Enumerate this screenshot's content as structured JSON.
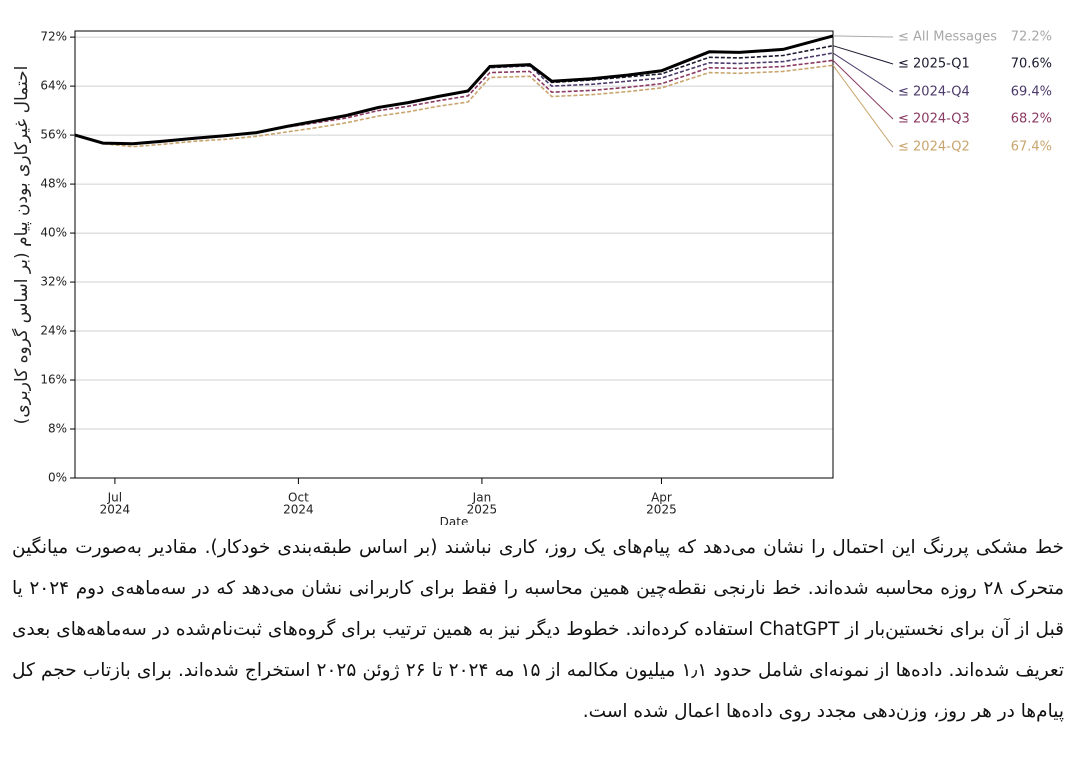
{
  "chart_data": {
    "type": "line",
    "y_label": "احتمال غیرکاری بودن پیام (بر اساس گروه کاربری)",
    "x_label": "Date",
    "x": [
      "2024-06-11",
      "2024-06-25",
      "2024-07-10",
      "2024-07-25",
      "2024-08-10",
      "2024-08-25",
      "2024-09-10",
      "2024-09-25",
      "2024-10-10",
      "2024-10-25",
      "2024-11-10",
      "2024-11-25",
      "2024-12-10",
      "2024-12-25",
      "2025-01-05",
      "2025-01-25",
      "2025-02-05",
      "2025-02-25",
      "2025-03-15",
      "2025-04-01",
      "2025-04-25",
      "2025-05-10",
      "2025-06-01",
      "2025-06-26"
    ],
    "series": [
      {
        "name": "≤ 2024-Q2",
        "color": "#c9a56e",
        "dashed": true,
        "end_label": "67.4%",
        "values": [
          56,
          54.6,
          54.1,
          54.5,
          55.0,
          55.3,
          55.8,
          56.5,
          57.2,
          58.0,
          59.1,
          59.8,
          60.7,
          61.4,
          65.4,
          65.6,
          62.3,
          62.6,
          63.1,
          63.7,
          66.2,
          66.1,
          66.4,
          67.4
        ]
      },
      {
        "name": "≤ 2024-Q3",
        "color": "#8b3a62",
        "dashed": true,
        "end_label": "68.2%",
        "values": [
          56,
          54.7,
          54.6,
          55.0,
          55.5,
          55.9,
          56.4,
          57.3,
          58.0,
          58.8,
          60.0,
          60.7,
          61.6,
          62.4,
          66.2,
          66.4,
          63.0,
          63.3,
          63.8,
          64.4,
          67.0,
          66.9,
          67.2,
          68.2
        ]
      },
      {
        "name": "≤ 2024-Q4",
        "color": "#4b3a6b",
        "dashed": true,
        "end_label": "69.4%",
        "values": [
          56,
          54.7,
          54.6,
          55.0,
          55.5,
          55.9,
          56.4,
          57.4,
          58.3,
          59.2,
          60.5,
          61.3,
          62.3,
          63.2,
          67.0,
          67.3,
          64.0,
          64.3,
          64.8,
          65.3,
          67.8,
          67.7,
          68.0,
          69.4
        ]
      },
      {
        "name": "≤ 2025-Q1",
        "color": "#1a1a2e",
        "dashed": true,
        "end_label": "70.6%",
        "values": [
          56,
          54.7,
          54.6,
          55.0,
          55.5,
          55.9,
          56.4,
          57.4,
          58.3,
          59.2,
          60.5,
          61.3,
          62.3,
          63.2,
          67.2,
          67.5,
          64.6,
          65.0,
          65.5,
          66.0,
          68.7,
          68.6,
          69.0,
          70.6
        ]
      },
      {
        "name": "≤ All Messages",
        "color": "#000000",
        "dashed": false,
        "label_color": "#a8a8a8",
        "end_label": "72.2%",
        "values": [
          56,
          54.7,
          54.6,
          55.0,
          55.5,
          55.9,
          56.4,
          57.4,
          58.3,
          59.2,
          60.5,
          61.3,
          62.3,
          63.2,
          67.2,
          67.5,
          64.8,
          65.2,
          65.8,
          66.5,
          69.6,
          69.5,
          70.0,
          72.2
        ]
      }
    ],
    "xlim": [
      "2024-06-11",
      "2025-06-26"
    ],
    "xticks": [
      {
        "value": "2024-07-01",
        "label": "Jul",
        "year": "2024"
      },
      {
        "value": "2024-10-01",
        "label": "Oct",
        "year": "2024"
      },
      {
        "value": "2025-01-01",
        "label": "Jan",
        "year": "2025"
      },
      {
        "value": "2025-04-01",
        "label": "Apr",
        "year": "2025"
      }
    ],
    "ylim": [
      0,
      73
    ],
    "yticks": [
      {
        "value": 0,
        "label": "0%"
      },
      {
        "value": 8,
        "label": "8%"
      },
      {
        "value": 16,
        "label": "16%"
      },
      {
        "value": 24,
        "label": "24%"
      },
      {
        "value": 32,
        "label": "32%"
      },
      {
        "value": 40,
        "label": "40%"
      },
      {
        "value": 48,
        "label": "48%"
      },
      {
        "value": 56,
        "label": "56%"
      },
      {
        "value": 64,
        "label": "64%"
      },
      {
        "value": 72,
        "label": "72%"
      }
    ],
    "grid": true
  },
  "caption": "خط مشکی پررنگ این احتمال را نشان می‌دهد که پیام‌های یک روز، کاری نباشند (بر اساس طبقه‌بندی خودکار). مقادیر به‌صورت میانگین متحرک ۲۸ روزه محاسبه شده‌اند. خط نارنجی نقطه‌چین همین محاسبه را فقط برای کاربرانی نشان می‌دهد که در سه‌ماهه‌ی دوم ۲۰۲۴ یا قبل از آن برای نخستین‌بار از ChatGPT استفاده کرده‌اند. خطوط دیگر نیز به همین ترتیب برای گروه‌های ثبت‌نام‌شده در سه‌ماهه‌های بعدی تعریف شده‌اند. داده‌ها از نمونه‌ای شامل حدود ۱٫۱ میلیون مکالمه از ۱۵ مه ۲۰۲۴ تا ۲۶ ژوئن ۲۰۲۵ استخراج شده‌اند. برای بازتاب حجم کل پیام‌ها در هر روز، وزن‌دهی مجدد روی داده‌ها اعمال شده است."
}
